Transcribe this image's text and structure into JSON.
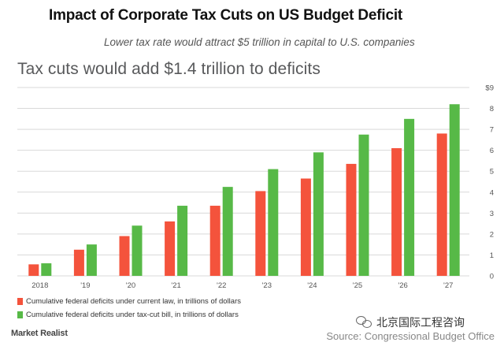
{
  "header": {
    "title": "Impact of Corporate Tax Cuts on US Budget Deficit",
    "subtitle": "Lower tax rate would attract $5 trillion in capital to U.S. companies"
  },
  "colors": {
    "current_law": "#f4533c",
    "tax_cut": "#57b947",
    "grid": "#d9d9d9",
    "axis_text": "#555555"
  },
  "legend": {
    "current_law": "Cumulative federal deficits under current law, in trillions of dollars",
    "tax_cut": "Cumulative federal deficits under tax-cut bill, in trillions of dollars"
  },
  "footer": {
    "brand": "Market Realist",
    "watermark": "北京国际工程咨询",
    "source": "Source: Congressional Budget Office"
  },
  "chart_data": {
    "type": "bar",
    "title": "Tax cuts would add $1.4 trillion to deficits",
    "categories": [
      "2018",
      "'19",
      "'20",
      "'21",
      "'22",
      "'23",
      "'24",
      "'25",
      "'26",
      "'27"
    ],
    "series": [
      {
        "name": "Cumulative federal deficits under current law, in trillions of dollars",
        "values": [
          0.55,
          1.25,
          1.9,
          2.6,
          3.35,
          4.05,
          4.65,
          5.35,
          6.1,
          6.8
        ]
      },
      {
        "name": "Cumulative federal deficits under tax-cut bill, in trillions of dollars",
        "values": [
          0.6,
          1.5,
          2.4,
          3.35,
          4.25,
          5.1,
          5.9,
          6.75,
          7.5,
          8.2
        ]
      }
    ],
    "ylim": [
      0,
      9
    ],
    "yticks": [
      0,
      1,
      2,
      3,
      4,
      5,
      6,
      7,
      8,
      9
    ],
    "ytick_labels": [
      "0",
      "1",
      "2",
      "3",
      "4",
      "5",
      "6",
      "7",
      "8",
      "$9"
    ],
    "xlabel": "",
    "ylabel": "",
    "grid": true,
    "legend_position": "bottom-left"
  }
}
